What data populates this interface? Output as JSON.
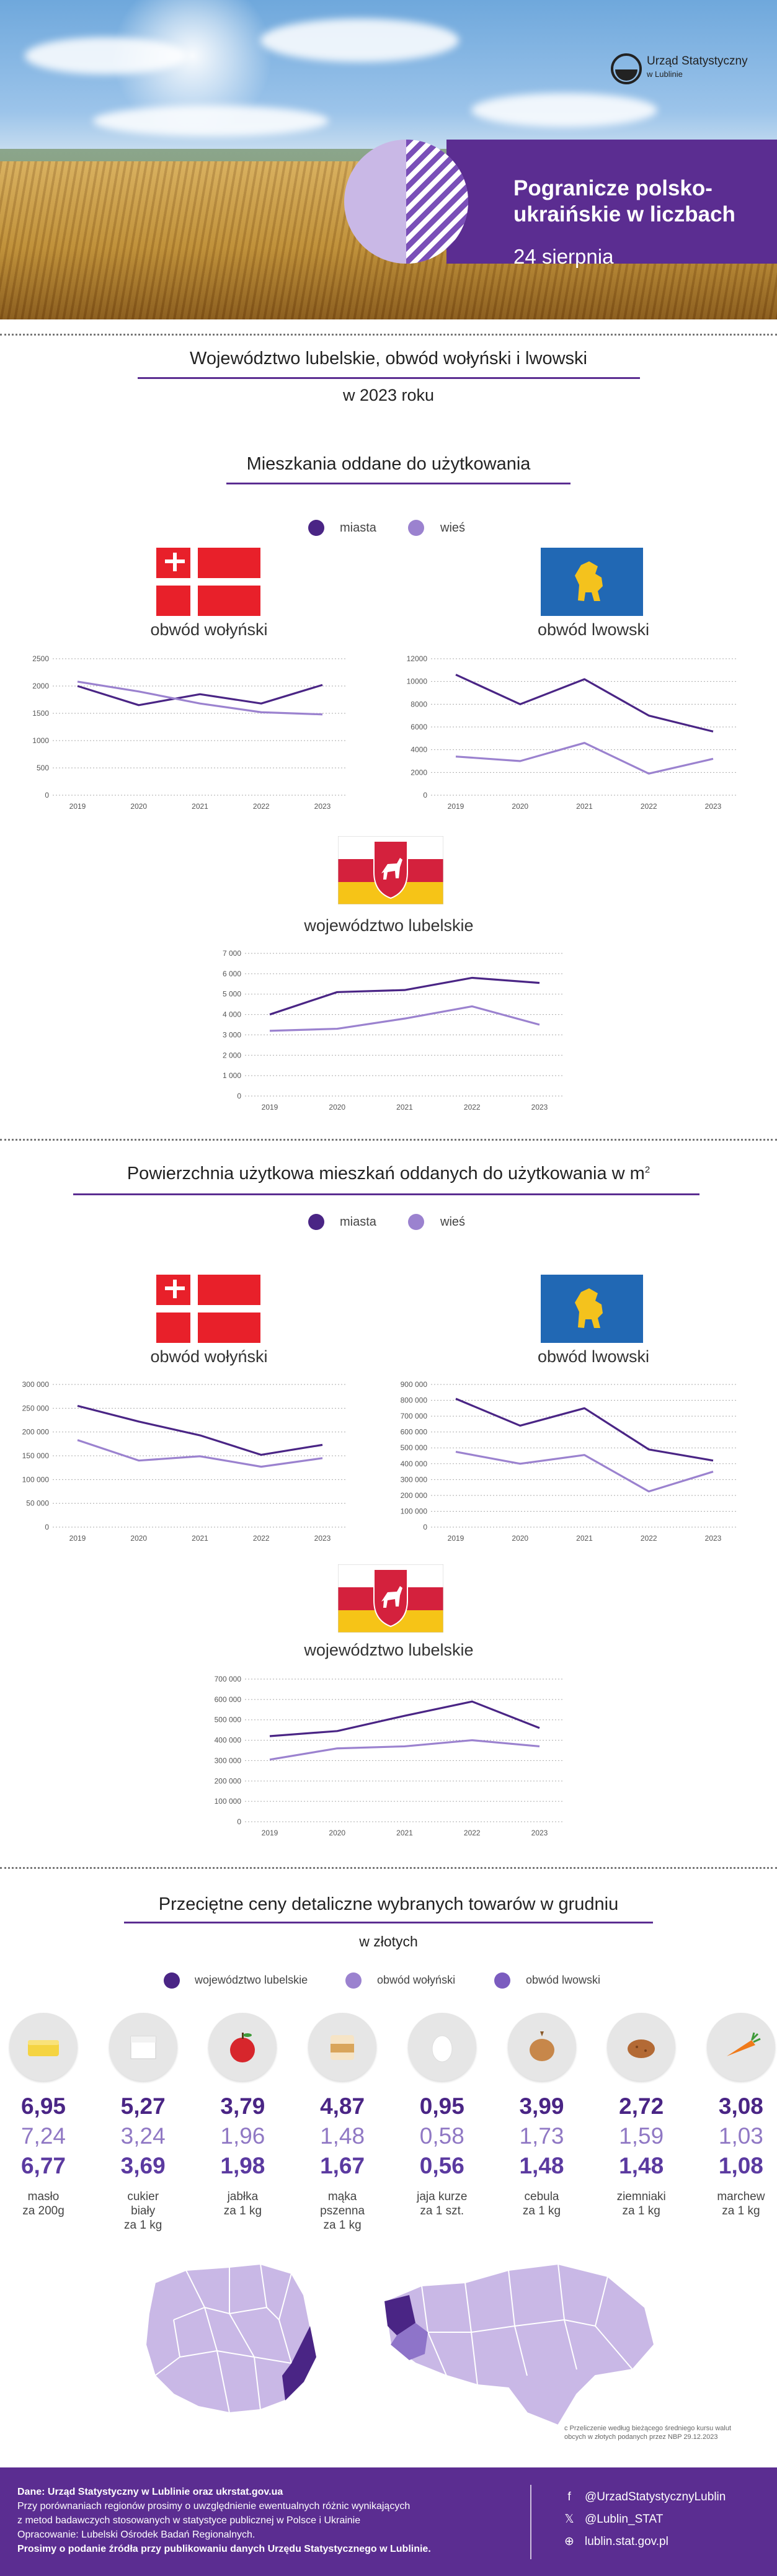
{
  "header": {
    "logo_name": "Urząd Statystyczny",
    "logo_sub": "w Lublinie",
    "title": "Pogranicze polsko-ukraińskie w liczbach",
    "date": "24 sierpnia"
  },
  "section1": {
    "heading": "Województwo lubelskie, obwód wołyński i lwowski",
    "year": "w 2023 roku"
  },
  "dwellings": {
    "heading": "Mieszkania oddane do użytkowania",
    "legend": [
      "miasta",
      "wieś"
    ]
  },
  "area": {
    "heading": "Powierzchnia użytkowa mieszkań oddanych do użytkowania w m",
    "sup": "2",
    "legend": [
      "miasta",
      "wieś"
    ]
  },
  "regions": {
    "volyn": "obwód wołyński",
    "lviv": "obwód lwowski",
    "lublin": "województwo lubelskie"
  },
  "colors": {
    "miasta": "#4a2585",
    "wies": "#9b82cf",
    "accent": "#5b2d91"
  },
  "chart_data": [
    {
      "id": "dw_volyn",
      "type": "line",
      "title": "obwód wołyński",
      "x": [
        "2019",
        "2020",
        "2021",
        "2022",
        "2023"
      ],
      "ylim": [
        0,
        2500
      ],
      "yticks": [
        0,
        500,
        1000,
        1500,
        2000,
        2500
      ],
      "ytick_labels": [
        "0",
        "500",
        "1000",
        "1500",
        "2000",
        "2500"
      ],
      "series": [
        {
          "name": "miasta",
          "values": [
            2000,
            1650,
            1850,
            1680,
            2020
          ]
        },
        {
          "name": "wieś",
          "values": [
            2080,
            1900,
            1680,
            1520,
            1480
          ]
        }
      ]
    },
    {
      "id": "dw_lviv",
      "type": "line",
      "title": "obwód lwowski",
      "x": [
        "2019",
        "2020",
        "2021",
        "2022",
        "2023"
      ],
      "ylim": [
        0,
        12000
      ],
      "yticks": [
        0,
        2000,
        4000,
        6000,
        8000,
        10000,
        12000
      ],
      "ytick_labels": [
        "0",
        "2000",
        "4000",
        "6000",
        "8000",
        "10000",
        "12000"
      ],
      "series": [
        {
          "name": "miasta",
          "values": [
            10600,
            8000,
            10200,
            7000,
            5600
          ]
        },
        {
          "name": "wieś",
          "values": [
            3400,
            3000,
            4600,
            1900,
            3200
          ]
        }
      ]
    },
    {
      "id": "dw_lublin",
      "type": "line",
      "title": "województwo lubelskie",
      "x": [
        "2019",
        "2020",
        "2021",
        "2022",
        "2023"
      ],
      "ylim": [
        0,
        7000
      ],
      "yticks": [
        0,
        1000,
        2000,
        3000,
        4000,
        5000,
        6000,
        7000
      ],
      "ytick_labels": [
        "0",
        "1 000",
        "2 000",
        "3 000",
        "4 000",
        "5 000",
        "6 000",
        "7 000"
      ],
      "series": [
        {
          "name": "miasta",
          "values": [
            4000,
            5100,
            5200,
            5800,
            5550
          ]
        },
        {
          "name": "wieś",
          "values": [
            3200,
            3300,
            3800,
            4400,
            3500
          ]
        }
      ]
    },
    {
      "id": "ar_volyn",
      "type": "line",
      "title": "obwód wołyński",
      "x": [
        "2019",
        "2020",
        "2021",
        "2022",
        "2023"
      ],
      "ylim": [
        0,
        300000
      ],
      "yticks": [
        0,
        50000,
        100000,
        150000,
        200000,
        250000,
        300000
      ],
      "ytick_labels": [
        "0",
        "50 000",
        "100 000",
        "150 000",
        "200 000",
        "250 000",
        "300 000"
      ],
      "series": [
        {
          "name": "miasta",
          "values": [
            255000,
            222000,
            193000,
            152000,
            173000
          ]
        },
        {
          "name": "wieś",
          "values": [
            183000,
            140000,
            149000,
            127000,
            145000
          ]
        }
      ]
    },
    {
      "id": "ar_lviv",
      "type": "line",
      "title": "obwód lwowski",
      "x": [
        "2019",
        "2020",
        "2021",
        "2022",
        "2023"
      ],
      "ylim": [
        0,
        900000
      ],
      "yticks": [
        0,
        100000,
        200000,
        300000,
        400000,
        500000,
        600000,
        700000,
        800000,
        900000
      ],
      "ytick_labels": [
        "0",
        "100 000",
        "200 000",
        "300 000",
        "400 000",
        "500 000",
        "600 000",
        "700 000",
        "800 000",
        "900 000"
      ],
      "series": [
        {
          "name": "miasta",
          "values": [
            810000,
            640000,
            750000,
            490000,
            420000
          ]
        },
        {
          "name": "wieś",
          "values": [
            475000,
            400000,
            455000,
            225000,
            350000
          ]
        }
      ]
    },
    {
      "id": "ar_lublin",
      "type": "line",
      "title": "województwo lubelskie",
      "x": [
        "2019",
        "2020",
        "2021",
        "2022",
        "2023"
      ],
      "ylim": [
        0,
        700000
      ],
      "yticks": [
        0,
        100000,
        200000,
        300000,
        400000,
        500000,
        600000,
        700000
      ],
      "ytick_labels": [
        "0",
        "100 000",
        "200 000",
        "300 000",
        "400 000",
        "500 000",
        "600 000",
        "700 000"
      ],
      "series": [
        {
          "name": "miasta",
          "values": [
            420000,
            445000,
            520000,
            590000,
            460000
          ]
        },
        {
          "name": "wieś",
          "values": [
            305000,
            360000,
            370000,
            400000,
            370000
          ]
        }
      ]
    },
    {
      "id": "prices",
      "type": "table",
      "title": "Przeciętne ceny detaliczne wybranych towarów w grudniu",
      "unit": "w złotych",
      "series_names": [
        "województwo lubelskie",
        "obwód wołyński",
        "obwód lwowski"
      ],
      "items": [
        {
          "name": "masło\nza 200g",
          "icon": "butter-icon",
          "values": [
            "6,95",
            "7,24",
            "6,77"
          ]
        },
        {
          "name": "cukier\nbiały\nza 1 kg",
          "icon": "sugar-icon",
          "values": [
            "5,27",
            "3,24",
            "3,69"
          ]
        },
        {
          "name": "jabłka\nza 1 kg",
          "icon": "apple-icon",
          "values": [
            "3,79",
            "1,96",
            "1,98"
          ]
        },
        {
          "name": "mąka\npszenna\nza 1 kg",
          "icon": "flour-icon",
          "values": [
            "4,87",
            "1,48",
            "1,67"
          ]
        },
        {
          "name": "jaja kurze\nza 1 szt.",
          "icon": "egg-icon",
          "values": [
            "0,95",
            "0,58",
            "0,56"
          ]
        },
        {
          "name": "cebula\nza 1 kg",
          "icon": "onion-icon",
          "values": [
            "3,99",
            "1,73",
            "1,48"
          ]
        },
        {
          "name": "ziemniaki\nza 1 kg",
          "icon": "potato-icon",
          "values": [
            "2,72",
            "1,59",
            "1,48"
          ]
        },
        {
          "name": "marchew\nza 1 kg",
          "icon": "carrot-icon",
          "values": [
            "3,08",
            "1,03",
            "1,08"
          ]
        }
      ]
    }
  ],
  "prices_section": {
    "heading": "Przeciętne ceny detaliczne wybranych towarów w grudniu",
    "unit": "w złotych",
    "legend": [
      "województwo lubelskie",
      "obwód wołyński",
      "obwód lwowski"
    ],
    "legend_colors": [
      "#4a2585",
      "#9b82cf",
      "#7b5cbf"
    ],
    "note": "c Przeliczenie według bieżącego średniego kursu walut obcych w złotych podanych przez NBP 29.12.2023"
  },
  "footer": {
    "line1": "Dane: Urząd Statystyczny w Lublinie oraz ukrstat.gov.ua",
    "line2": "Przy porównaniach regionów prosimy o uwzględnienie ewentualnych różnic wynikających",
    "line3": "z metod badawczych stosowanych w statystyce publicznej w Polsce i Ukrainie",
    "line4": "Opracowanie: Lubelski Ośrodek Badań Regionalnych.",
    "line5": "Prosimy o podanie źródła przy publikowaniu danych Urzędu Statystycznego w Lublinie.",
    "facebook": "@UrzadStatystycznyLublin",
    "x": "@Lublin_STAT",
    "web": "lublin.stat.gov.pl"
  }
}
